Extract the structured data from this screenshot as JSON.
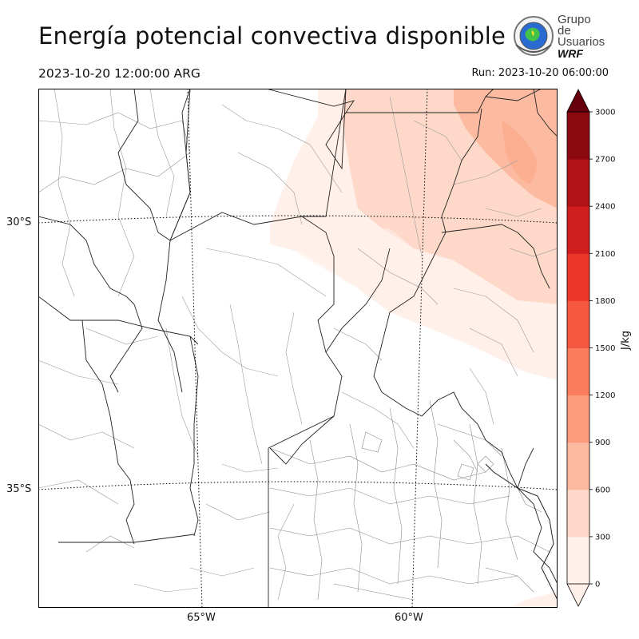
{
  "header": {
    "title": "Energía potencial convectiva disponible",
    "valid_time": "2023-10-20 12:00:00 ARG",
    "run_time": "Run: 2023-10-20 06:00:00"
  },
  "logo": {
    "line1": "Grupo de",
    "line2": "Usuarios",
    "line3": "WRF"
  },
  "map": {
    "lat_labels": [
      "30°S",
      "35°S"
    ],
    "lon_labels": [
      "65°W",
      "60°W"
    ],
    "variable": "CAPE",
    "max_region": "northeast"
  },
  "colorbar": {
    "unit": "J/kg",
    "ticks": [
      "0",
      "300",
      "600",
      "900",
      "1200",
      "1500",
      "1800",
      "2100",
      "2400",
      "2700",
      "3000"
    ],
    "colors": [
      "#fff0ea",
      "#fed8c8",
      "#fcbba1",
      "#fc9b7c",
      "#fb7c5c",
      "#f6573f",
      "#ea372a",
      "#d11e1f",
      "#b11218",
      "#8b0a12",
      "#67000d"
    ],
    "extend": "both"
  }
}
